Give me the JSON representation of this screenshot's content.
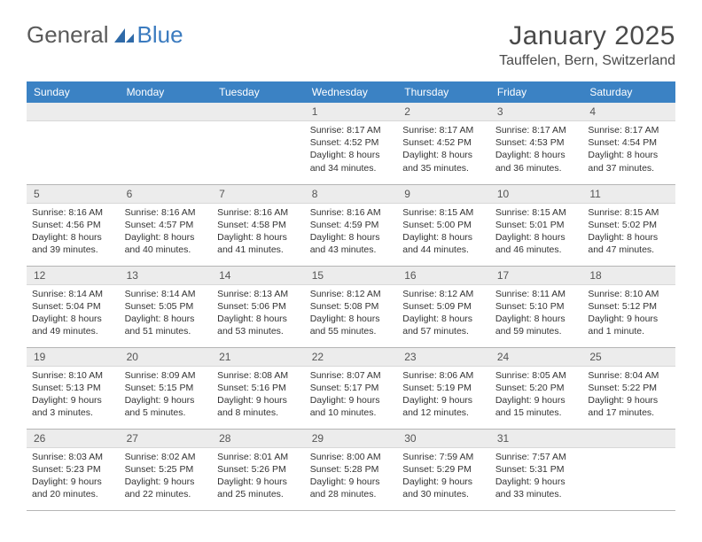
{
  "brand": {
    "part1": "General",
    "part2": "Blue"
  },
  "title": "January 2025",
  "location": "Tauffelen, Bern, Switzerland",
  "colors": {
    "header_bg": "#3b82c4",
    "header_text": "#ffffff",
    "daynum_bg": "#ececec",
    "border": "#b5b5b5",
    "body_text": "#333333",
    "brand_gray": "#5a5a5a",
    "brand_blue": "#3b7bbf"
  },
  "weekdays": [
    "Sunday",
    "Monday",
    "Tuesday",
    "Wednesday",
    "Thursday",
    "Friday",
    "Saturday"
  ],
  "weeks": [
    [
      null,
      null,
      null,
      {
        "n": "1",
        "sr": "Sunrise: 8:17 AM",
        "ss": "Sunset: 4:52 PM",
        "d1": "Daylight: 8 hours",
        "d2": "and 34 minutes."
      },
      {
        "n": "2",
        "sr": "Sunrise: 8:17 AM",
        "ss": "Sunset: 4:52 PM",
        "d1": "Daylight: 8 hours",
        "d2": "and 35 minutes."
      },
      {
        "n": "3",
        "sr": "Sunrise: 8:17 AM",
        "ss": "Sunset: 4:53 PM",
        "d1": "Daylight: 8 hours",
        "d2": "and 36 minutes."
      },
      {
        "n": "4",
        "sr": "Sunrise: 8:17 AM",
        "ss": "Sunset: 4:54 PM",
        "d1": "Daylight: 8 hours",
        "d2": "and 37 minutes."
      }
    ],
    [
      {
        "n": "5",
        "sr": "Sunrise: 8:16 AM",
        "ss": "Sunset: 4:56 PM",
        "d1": "Daylight: 8 hours",
        "d2": "and 39 minutes."
      },
      {
        "n": "6",
        "sr": "Sunrise: 8:16 AM",
        "ss": "Sunset: 4:57 PM",
        "d1": "Daylight: 8 hours",
        "d2": "and 40 minutes."
      },
      {
        "n": "7",
        "sr": "Sunrise: 8:16 AM",
        "ss": "Sunset: 4:58 PM",
        "d1": "Daylight: 8 hours",
        "d2": "and 41 minutes."
      },
      {
        "n": "8",
        "sr": "Sunrise: 8:16 AM",
        "ss": "Sunset: 4:59 PM",
        "d1": "Daylight: 8 hours",
        "d2": "and 43 minutes."
      },
      {
        "n": "9",
        "sr": "Sunrise: 8:15 AM",
        "ss": "Sunset: 5:00 PM",
        "d1": "Daylight: 8 hours",
        "d2": "and 44 minutes."
      },
      {
        "n": "10",
        "sr": "Sunrise: 8:15 AM",
        "ss": "Sunset: 5:01 PM",
        "d1": "Daylight: 8 hours",
        "d2": "and 46 minutes."
      },
      {
        "n": "11",
        "sr": "Sunrise: 8:15 AM",
        "ss": "Sunset: 5:02 PM",
        "d1": "Daylight: 8 hours",
        "d2": "and 47 minutes."
      }
    ],
    [
      {
        "n": "12",
        "sr": "Sunrise: 8:14 AM",
        "ss": "Sunset: 5:04 PM",
        "d1": "Daylight: 8 hours",
        "d2": "and 49 minutes."
      },
      {
        "n": "13",
        "sr": "Sunrise: 8:14 AM",
        "ss": "Sunset: 5:05 PM",
        "d1": "Daylight: 8 hours",
        "d2": "and 51 minutes."
      },
      {
        "n": "14",
        "sr": "Sunrise: 8:13 AM",
        "ss": "Sunset: 5:06 PM",
        "d1": "Daylight: 8 hours",
        "d2": "and 53 minutes."
      },
      {
        "n": "15",
        "sr": "Sunrise: 8:12 AM",
        "ss": "Sunset: 5:08 PM",
        "d1": "Daylight: 8 hours",
        "d2": "and 55 minutes."
      },
      {
        "n": "16",
        "sr": "Sunrise: 8:12 AM",
        "ss": "Sunset: 5:09 PM",
        "d1": "Daylight: 8 hours",
        "d2": "and 57 minutes."
      },
      {
        "n": "17",
        "sr": "Sunrise: 8:11 AM",
        "ss": "Sunset: 5:10 PM",
        "d1": "Daylight: 8 hours",
        "d2": "and 59 minutes."
      },
      {
        "n": "18",
        "sr": "Sunrise: 8:10 AM",
        "ss": "Sunset: 5:12 PM",
        "d1": "Daylight: 9 hours",
        "d2": "and 1 minute."
      }
    ],
    [
      {
        "n": "19",
        "sr": "Sunrise: 8:10 AM",
        "ss": "Sunset: 5:13 PM",
        "d1": "Daylight: 9 hours",
        "d2": "and 3 minutes."
      },
      {
        "n": "20",
        "sr": "Sunrise: 8:09 AM",
        "ss": "Sunset: 5:15 PM",
        "d1": "Daylight: 9 hours",
        "d2": "and 5 minutes."
      },
      {
        "n": "21",
        "sr": "Sunrise: 8:08 AM",
        "ss": "Sunset: 5:16 PM",
        "d1": "Daylight: 9 hours",
        "d2": "and 8 minutes."
      },
      {
        "n": "22",
        "sr": "Sunrise: 8:07 AM",
        "ss": "Sunset: 5:17 PM",
        "d1": "Daylight: 9 hours",
        "d2": "and 10 minutes."
      },
      {
        "n": "23",
        "sr": "Sunrise: 8:06 AM",
        "ss": "Sunset: 5:19 PM",
        "d1": "Daylight: 9 hours",
        "d2": "and 12 minutes."
      },
      {
        "n": "24",
        "sr": "Sunrise: 8:05 AM",
        "ss": "Sunset: 5:20 PM",
        "d1": "Daylight: 9 hours",
        "d2": "and 15 minutes."
      },
      {
        "n": "25",
        "sr": "Sunrise: 8:04 AM",
        "ss": "Sunset: 5:22 PM",
        "d1": "Daylight: 9 hours",
        "d2": "and 17 minutes."
      }
    ],
    [
      {
        "n": "26",
        "sr": "Sunrise: 8:03 AM",
        "ss": "Sunset: 5:23 PM",
        "d1": "Daylight: 9 hours",
        "d2": "and 20 minutes."
      },
      {
        "n": "27",
        "sr": "Sunrise: 8:02 AM",
        "ss": "Sunset: 5:25 PM",
        "d1": "Daylight: 9 hours",
        "d2": "and 22 minutes."
      },
      {
        "n": "28",
        "sr": "Sunrise: 8:01 AM",
        "ss": "Sunset: 5:26 PM",
        "d1": "Daylight: 9 hours",
        "d2": "and 25 minutes."
      },
      {
        "n": "29",
        "sr": "Sunrise: 8:00 AM",
        "ss": "Sunset: 5:28 PM",
        "d1": "Daylight: 9 hours",
        "d2": "and 28 minutes."
      },
      {
        "n": "30",
        "sr": "Sunrise: 7:59 AM",
        "ss": "Sunset: 5:29 PM",
        "d1": "Daylight: 9 hours",
        "d2": "and 30 minutes."
      },
      {
        "n": "31",
        "sr": "Sunrise: 7:57 AM",
        "ss": "Sunset: 5:31 PM",
        "d1": "Daylight: 9 hours",
        "d2": "and 33 minutes."
      },
      null
    ]
  ]
}
